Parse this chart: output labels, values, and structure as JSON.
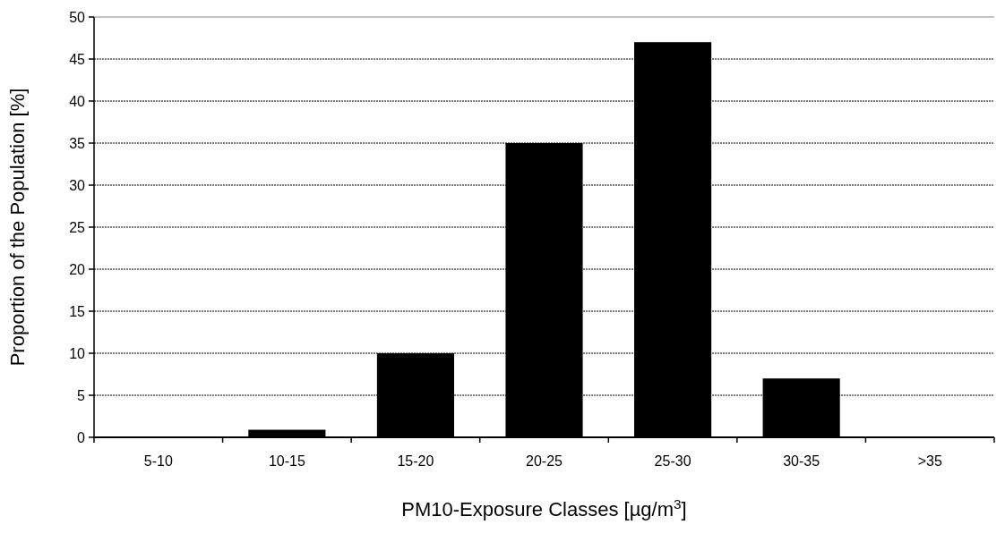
{
  "chart_data": {
    "type": "bar",
    "xlabel": "PM10-Exposure Classes [µg/m$^{3}$]",
    "ylabel": "Proportion of the Population [%]",
    "categories": [
      "5-10",
      "10-15",
      "15-20",
      "20-25",
      "25-30",
      "30-35",
      ">35"
    ],
    "values": [
      0,
      0.9,
      10,
      35,
      47,
      7,
      0.1
    ],
    "color": "#000000",
    "ylim": [
      0,
      50
    ],
    "yticks": [
      0,
      5,
      10,
      15,
      20,
      25,
      30,
      35,
      40,
      45,
      50
    ],
    "grid": "y"
  }
}
